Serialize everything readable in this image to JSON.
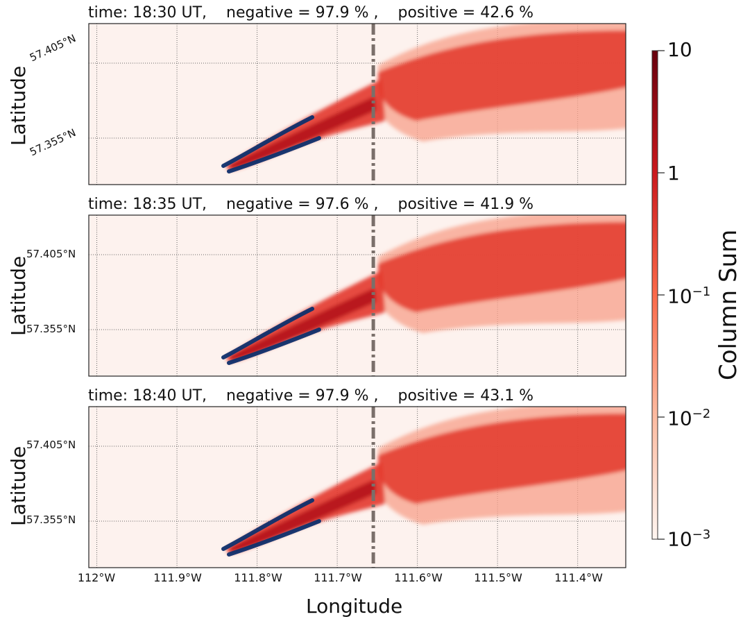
{
  "colors": {
    "background": "#fdf2ee",
    "plume_dark": "#b5171c",
    "plume_mid": "#e3362b",
    "plume_light": "#f7a08a",
    "negative_contour": "#0e2f6b",
    "divider": "#7a6f6a",
    "grid": "#666666"
  },
  "chart_data": [
    {
      "type": "heatmap",
      "title": "time: 18:30 UT,    negative = 97.9 % ,    positive = 42.6 %",
      "time": "18:30 UT",
      "negative_percent": 97.9,
      "positive_percent": 42.6,
      "ylabel": "Latitude",
      "lat_ticks": [
        "57.405°N",
        "57.355°N"
      ],
      "lat_tick_values": [
        57.405,
        57.355
      ],
      "rotated_lat_ticks": true
    },
    {
      "type": "heatmap",
      "title": "time: 18:35 UT,    negative = 97.6 % ,    positive = 41.9 %",
      "time": "18:35 UT",
      "negative_percent": 97.6,
      "positive_percent": 41.9,
      "ylabel": "Latitude",
      "lat_ticks": [
        "57.405°N",
        "57.355°N"
      ],
      "lat_tick_values": [
        57.405,
        57.355
      ],
      "rotated_lat_ticks": false
    },
    {
      "type": "heatmap",
      "title": "time: 18:40 UT,    negative = 97.9 % ,    positive = 43.1 %",
      "time": "18:40 UT",
      "negative_percent": 97.9,
      "positive_percent": 43.1,
      "ylabel": "Latitude",
      "lat_ticks": [
        "57.405°N",
        "57.355°N"
      ],
      "lat_tick_values": [
        57.405,
        57.355
      ],
      "rotated_lat_ticks": false
    }
  ],
  "x_axis": {
    "xlabel": "Longitude",
    "ticks": [
      "112°W",
      "111.9°W",
      "111.8°W",
      "111.7°W",
      "111.6°W",
      "111.5°W",
      "111.4°W"
    ],
    "tick_values": [
      -112.0,
      -111.9,
      -111.8,
      -111.7,
      -111.6,
      -111.5,
      -111.4
    ],
    "xlim": [
      -112.01,
      -111.34
    ],
    "divider_lon": -111.655
  },
  "colorbar": {
    "label": "Column Sum",
    "scale": "log",
    "range": [
      0.001,
      10
    ],
    "ticks": [
      {
        "base": "10",
        "exp": "",
        "value": 10
      },
      {
        "base": "1",
        "exp": "",
        "value": 1
      },
      {
        "base": "10",
        "exp": "−1",
        "value": 0.1
      },
      {
        "base": "10",
        "exp": "−2",
        "value": 0.01
      },
      {
        "base": "10",
        "exp": "−3",
        "value": 0.001
      }
    ]
  }
}
